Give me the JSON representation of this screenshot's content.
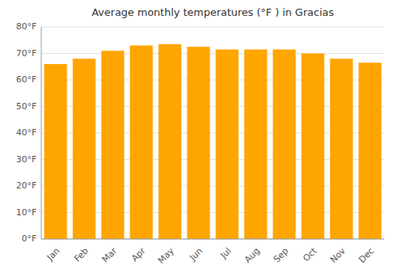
{
  "chart_data": {
    "type": "bar",
    "title": "Average monthly temperatures (°F ) in Gracias",
    "categories": [
      "Jan",
      "Feb",
      "Mar",
      "Apr",
      "May",
      "Jun",
      "Jul",
      "Aug",
      "Sep",
      "Oct",
      "Nov",
      "Dec"
    ],
    "values": [
      66,
      68,
      71,
      73,
      73.5,
      72.5,
      71.5,
      71.5,
      71.5,
      70,
      68,
      66.5
    ],
    "color": "#FFA500",
    "ylim": [
      0,
      80
    ],
    "yticks": [
      {
        "value": 0,
        "label": "0°F"
      },
      {
        "value": 10,
        "label": "10°F"
      },
      {
        "value": 20,
        "label": "20°F"
      },
      {
        "value": 30,
        "label": "30°F"
      },
      {
        "value": 40,
        "label": "40°F"
      },
      {
        "value": 50,
        "label": "50°F"
      },
      {
        "value": 60,
        "label": "60°F"
      },
      {
        "value": 70,
        "label": "70°F"
      },
      {
        "value": 80,
        "label": "80°F"
      }
    ],
    "grid": true
  }
}
